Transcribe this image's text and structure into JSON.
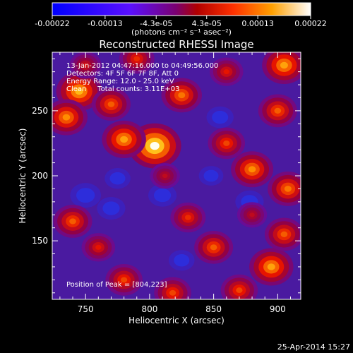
{
  "chart_data": {
    "type": "heatmap",
    "title": "Reconstructed RHESSI Image",
    "xlabel": "Heliocentric X (arcsec)",
    "ylabel": "Heliocentric Y (arcsec)",
    "xlim": [
      724,
      918
    ],
    "ylim": [
      105,
      295
    ],
    "x_ticks": [
      750,
      800,
      850,
      900
    ],
    "y_ticks": [
      150,
      200,
      250
    ],
    "colorbar": {
      "range": [
        -0.00022,
        0.00022
      ],
      "tick_values": [
        -0.00022,
        -0.00013,
        -4.3e-05,
        4.3e-05,
        0.00013,
        0.00022
      ],
      "tick_labels": [
        "-0.00022",
        "-0.00013",
        "-4.3e-05",
        "4.3e-05",
        "0.00013",
        "0.00022"
      ],
      "unit_label": "(photons cm⁻² s⁻¹ asec⁻²)",
      "colors": [
        "#0000ff",
        "#8a1cff",
        "#ff3b00",
        "#ffffff"
      ]
    },
    "annotations": [
      "13-Jan-2012 04:47:16.000 to 04:49:56.000",
      "Detectors: 4F 5F 6F 7F 8F, Att 0",
      "Energy Range: 12.0 - 25.0 keV",
      "Clean     Total counts: 3.11E+03"
    ],
    "peak_label": "Position of Peak = [804,223]",
    "peak": [
      804,
      223
    ],
    "blobs": [
      {
        "x": 804,
        "y": 223,
        "v": 1.0
      },
      {
        "x": 780,
        "y": 228,
        "v": 0.75
      },
      {
        "x": 745,
        "y": 265,
        "v": 0.8
      },
      {
        "x": 735,
        "y": 245,
        "v": 0.7
      },
      {
        "x": 770,
        "y": 255,
        "v": 0.6
      },
      {
        "x": 825,
        "y": 262,
        "v": 0.65
      },
      {
        "x": 905,
        "y": 285,
        "v": 0.75
      },
      {
        "x": 900,
        "y": 250,
        "v": 0.6
      },
      {
        "x": 880,
        "y": 205,
        "v": 0.7
      },
      {
        "x": 908,
        "y": 190,
        "v": 0.65
      },
      {
        "x": 860,
        "y": 225,
        "v": 0.55
      },
      {
        "x": 850,
        "y": 145,
        "v": 0.6
      },
      {
        "x": 895,
        "y": 130,
        "v": 0.75
      },
      {
        "x": 905,
        "y": 155,
        "v": 0.6
      },
      {
        "x": 818,
        "y": 110,
        "v": 0.55
      },
      {
        "x": 780,
        "y": 120,
        "v": 0.55
      },
      {
        "x": 740,
        "y": 165,
        "v": 0.6
      },
      {
        "x": 760,
        "y": 145,
        "v": 0.45
      },
      {
        "x": 830,
        "y": 168,
        "v": 0.5
      },
      {
        "x": 870,
        "y": 112,
        "v": 0.55
      },
      {
        "x": 860,
        "y": 280,
        "v": 0.45
      },
      {
        "x": 790,
        "y": 290,
        "v": 0.5
      },
      {
        "x": 750,
        "y": 285,
        "v": 0.4
      },
      {
        "x": 812,
        "y": 200,
        "v": 0.35
      },
      {
        "x": 880,
        "y": 170,
        "v": 0.35
      }
    ],
    "dips": [
      {
        "x": 750,
        "y": 185,
        "v": 0.55
      },
      {
        "x": 770,
        "y": 175,
        "v": 0.45
      },
      {
        "x": 810,
        "y": 185,
        "v": 0.45
      },
      {
        "x": 775,
        "y": 198,
        "v": 0.35
      },
      {
        "x": 878,
        "y": 180,
        "v": 0.45
      },
      {
        "x": 825,
        "y": 135,
        "v": 0.35
      },
      {
        "x": 855,
        "y": 245,
        "v": 0.4
      },
      {
        "x": 848,
        "y": 200,
        "v": 0.3
      }
    ]
  },
  "footer_date": "25-Apr-2014 15:27"
}
